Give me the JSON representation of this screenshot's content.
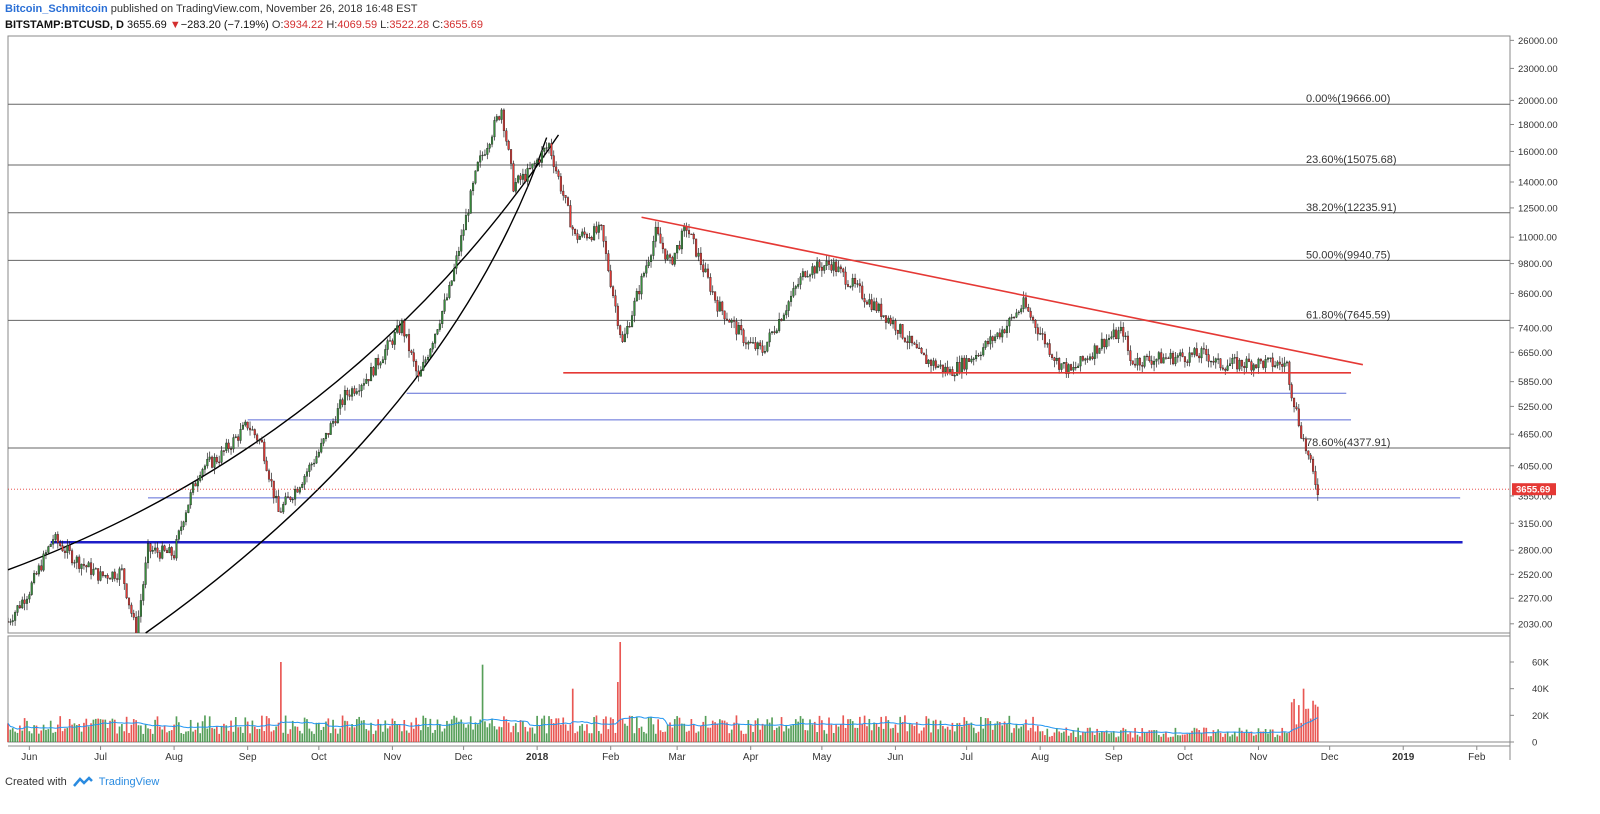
{
  "header": {
    "author": "Bitcoin_Schmitcoin",
    "published": " published on TradingView.com, November 26, 2018 16:48 EST",
    "symbol": "BITSTAMP:BTCUSD, D",
    "last": "3655.69",
    "arrow": "▼",
    "change": "−283.20 (−7.19%)",
    "o_label": "O:",
    "o_val": "3934.22",
    "h_label": "H:",
    "h_val": "4069.59",
    "l_label": "L:",
    "l_val": "3522.28",
    "c_label": "C:",
    "c_val": "3655.69"
  },
  "footer": {
    "created": "Created with",
    "brand": "TradingView"
  },
  "colors": {
    "up": "#388e3c",
    "down": "#e53935",
    "trend": "#e53935",
    "support": "#3f51b5",
    "fib": "#666666",
    "ma": "#2196f3"
  },
  "chart_data": {
    "type": "candlestick",
    "scale": "log",
    "ylim": [
      1950,
      26500
    ],
    "price_ticks": [
      26000,
      23000,
      20000,
      18000,
      16000,
      14000,
      12500,
      11000,
      9800,
      8600,
      7400,
      6650,
      5850,
      5250,
      4650,
      4050,
      3550,
      3150,
      2800,
      2520,
      2270,
      2030
    ],
    "price_tick_labels": [
      "26000.00",
      "23000.00",
      "20000.00",
      "18000.00",
      "16000.00",
      "14000.00",
      "12500.00",
      "11000.00",
      "9800.00",
      "8600.00",
      "7400.00",
      "6650.00",
      "5850.00",
      "5250.00",
      "4650.00",
      "4050.00",
      "3550.00",
      "3150.00",
      "2800.00",
      "2520.00",
      "2270.00",
      "2030.00"
    ],
    "last_price": 3655.69,
    "last_price_label": "3655.69",
    "x_range": [
      "2017-05-23",
      "2019-02-15"
    ],
    "x_ticks": [
      {
        "date": "2017-06-01",
        "label": "Jun"
      },
      {
        "date": "2017-07-01",
        "label": "Jul"
      },
      {
        "date": "2017-08-01",
        "label": "Aug"
      },
      {
        "date": "2017-09-01",
        "label": "Sep"
      },
      {
        "date": "2017-10-01",
        "label": "Oct"
      },
      {
        "date": "2017-11-01",
        "label": "Nov"
      },
      {
        "date": "2017-12-01",
        "label": "Dec"
      },
      {
        "date": "2018-01-01",
        "label": "2018",
        "bold": true
      },
      {
        "date": "2018-02-01",
        "label": "Feb"
      },
      {
        "date": "2018-03-01",
        "label": "Mar"
      },
      {
        "date": "2018-04-01",
        "label": "Apr"
      },
      {
        "date": "2018-05-01",
        "label": "May"
      },
      {
        "date": "2018-06-01",
        "label": "Jun"
      },
      {
        "date": "2018-07-01",
        "label": "Jul"
      },
      {
        "date": "2018-08-01",
        "label": "Aug"
      },
      {
        "date": "2018-09-01",
        "label": "Sep"
      },
      {
        "date": "2018-10-01",
        "label": "Oct"
      },
      {
        "date": "2018-11-01",
        "label": "Nov"
      },
      {
        "date": "2018-12-01",
        "label": "Dec"
      },
      {
        "date": "2019-01-01",
        "label": "2019",
        "bold": true
      },
      {
        "date": "2019-02-01",
        "label": "Feb"
      }
    ],
    "price_path": [
      [
        "2017-05-23",
        2050
      ],
      [
        "2017-06-01",
        2350
      ],
      [
        "2017-06-11",
        2950
      ],
      [
        "2017-06-20",
        2700
      ],
      [
        "2017-07-01",
        2500
      ],
      [
        "2017-07-10",
        2550
      ],
      [
        "2017-07-16",
        1950
      ],
      [
        "2017-07-21",
        2800
      ],
      [
        "2017-08-01",
        2750
      ],
      [
        "2017-08-05",
        3250
      ],
      [
        "2017-08-12",
        4000
      ],
      [
        "2017-08-20",
        4200
      ],
      [
        "2017-09-01",
        4850
      ],
      [
        "2017-09-07",
        4450
      ],
      [
        "2017-09-14",
        3300
      ],
      [
        "2017-09-22",
        3700
      ],
      [
        "2017-10-01",
        4300
      ],
      [
        "2017-10-12",
        5500
      ],
      [
        "2017-10-22",
        6000
      ],
      [
        "2017-11-05",
        7500
      ],
      [
        "2017-11-12",
        5900
      ],
      [
        "2017-11-25",
        8700
      ],
      [
        "2017-12-07",
        15000
      ],
      [
        "2017-12-17",
        19300
      ],
      [
        "2017-12-22",
        13800
      ],
      [
        "2017-12-28",
        14500
      ],
      [
        "2018-01-06",
        16500
      ],
      [
        "2018-01-17",
        11000
      ],
      [
        "2018-01-28",
        11300
      ],
      [
        "2018-02-06",
        6900
      ],
      [
        "2018-02-20",
        11200
      ],
      [
        "2018-02-26",
        9800
      ],
      [
        "2018-03-05",
        11500
      ],
      [
        "2018-03-18",
        8200
      ],
      [
        "2018-03-31",
        6900
      ],
      [
        "2018-04-06",
        6700
      ],
      [
        "2018-04-24",
        9500
      ],
      [
        "2018-05-05",
        9800
      ],
      [
        "2018-05-20",
        8400
      ],
      [
        "2018-06-01",
        7500
      ],
      [
        "2018-06-12",
        6500
      ],
      [
        "2018-06-24",
        6100
      ],
      [
        "2018-07-05",
        6600
      ],
      [
        "2018-07-17",
        7400
      ],
      [
        "2018-07-25",
        8200
      ],
      [
        "2018-08-08",
        6400
      ],
      [
        "2018-08-14",
        6100
      ],
      [
        "2018-08-28",
        7000
      ],
      [
        "2018-09-05",
        7300
      ],
      [
        "2018-09-08",
        6400
      ],
      [
        "2018-09-25",
        6500
      ],
      [
        "2018-10-10",
        6600
      ],
      [
        "2018-10-15",
        6300
      ],
      [
        "2018-11-01",
        6350
      ],
      [
        "2018-11-13",
        6300
      ],
      [
        "2018-11-15",
        5600
      ],
      [
        "2018-11-19",
        4700
      ],
      [
        "2018-11-24",
        3900
      ],
      [
        "2018-11-26",
        3655.69
      ]
    ],
    "fib_levels": [
      {
        "price": 19666,
        "label": "0.00%(19666.00)"
      },
      {
        "price": 15075.68,
        "label": "23.60%(15075.68)"
      },
      {
        "price": 12235.91,
        "label": "38.20%(12235.91)"
      },
      {
        "price": 9940.75,
        "label": "50.00%(9940.75)"
      },
      {
        "price": 7645.59,
        "label": "61.80%(7645.59)"
      },
      {
        "price": 4377.91,
        "label": "78.60%(4377.91)"
      }
    ],
    "trend_lines": [
      {
        "from": [
          "2018-02-14",
          12000
        ],
        "to": [
          "2018-12-15",
          6300
        ]
      },
      {
        "from": [
          "2018-01-12",
          6080
        ],
        "to": [
          "2018-12-10",
          6080
        ]
      }
    ],
    "support_lines": [
      {
        "price": 5560,
        "from": "2017-11-07",
        "to": "2018-12-08",
        "width": 1
      },
      {
        "price": 4950,
        "from": "2017-09-01",
        "to": "2018-12-10",
        "width": 1
      },
      {
        "price": 3520,
        "from": "2017-07-21",
        "to": "2019-01-25",
        "width": 1
      },
      {
        "price": 2900,
        "from": "2017-06-10",
        "to": "2019-01-26",
        "width": 2.5
      }
    ],
    "arcs": [
      {
        "from": [
          "2017-05-23",
          2570
        ],
        "control": [
          "2017-10-15",
          4500
        ],
        "to": [
          "2018-01-10",
          17200
        ]
      },
      {
        "from": [
          "2017-07-20",
          1950
        ],
        "control": [
          "2017-11-25",
          5000
        ],
        "to": [
          "2018-01-05",
          17000
        ]
      }
    ],
    "volume_ticks": [
      60000,
      40000,
      20000,
      0
    ],
    "volume_tick_labels": [
      "60K",
      "40K",
      "20K",
      "0"
    ],
    "volume_max": 75000,
    "volume_spikes": [
      {
        "date": "2017-09-15",
        "value": 60000
      },
      {
        "date": "2017-12-09",
        "value": 58000
      },
      {
        "date": "2018-02-05",
        "value": 75000
      },
      {
        "date": "2018-02-04",
        "value": 45000
      },
      {
        "date": "2018-01-16",
        "value": 40000
      },
      {
        "date": "2018-11-20",
        "value": 40000
      },
      {
        "date": "2018-11-22",
        "value": 25000
      },
      {
        "date": "2018-11-25",
        "value": 28000
      }
    ]
  }
}
